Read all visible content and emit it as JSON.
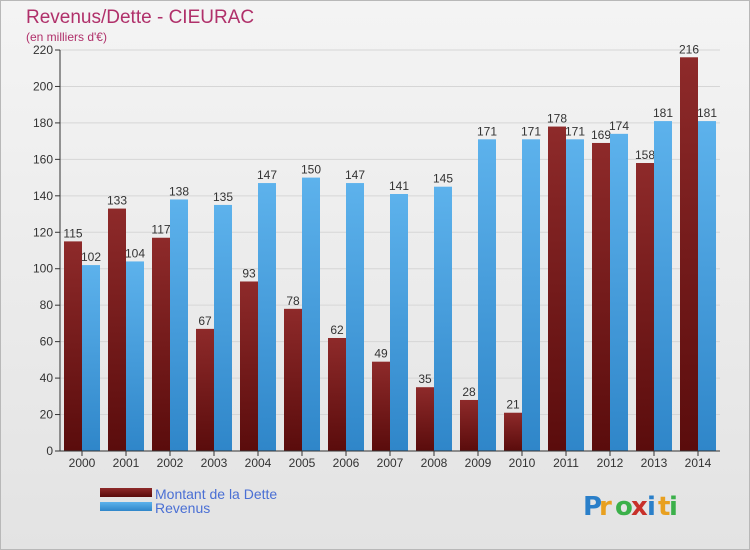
{
  "title": "Revenus/Dette - CIEURAC",
  "subtitle": "(en milliers d'€)",
  "logo": "Proxiti",
  "colors": {
    "dette": "#7a1e1e",
    "revenus": "#4aa3e3",
    "axis": "#333333",
    "grid": "#d6d6d6"
  },
  "chart_data": {
    "type": "bar",
    "categories": [
      "2000",
      "2001",
      "2002",
      "2003",
      "2004",
      "2005",
      "2006",
      "2007",
      "2008",
      "2009",
      "2010",
      "2011",
      "2012",
      "2013",
      "2014"
    ],
    "series": [
      {
        "name": "Montant de la Dette",
        "values": [
          115,
          133,
          117,
          67,
          93,
          78,
          62,
          49,
          35,
          28,
          21,
          178,
          169,
          158,
          216
        ]
      },
      {
        "name": "Revenus",
        "values": [
          102,
          104,
          138,
          135,
          147,
          150,
          147,
          141,
          145,
          171,
          171,
          171,
          174,
          181,
          181
        ]
      }
    ],
    "ylim": [
      0,
      220
    ],
    "yticks": [
      0,
      20,
      40,
      60,
      80,
      100,
      120,
      140,
      160,
      180,
      200,
      220
    ],
    "grid": true,
    "legend": "bottom-left"
  }
}
